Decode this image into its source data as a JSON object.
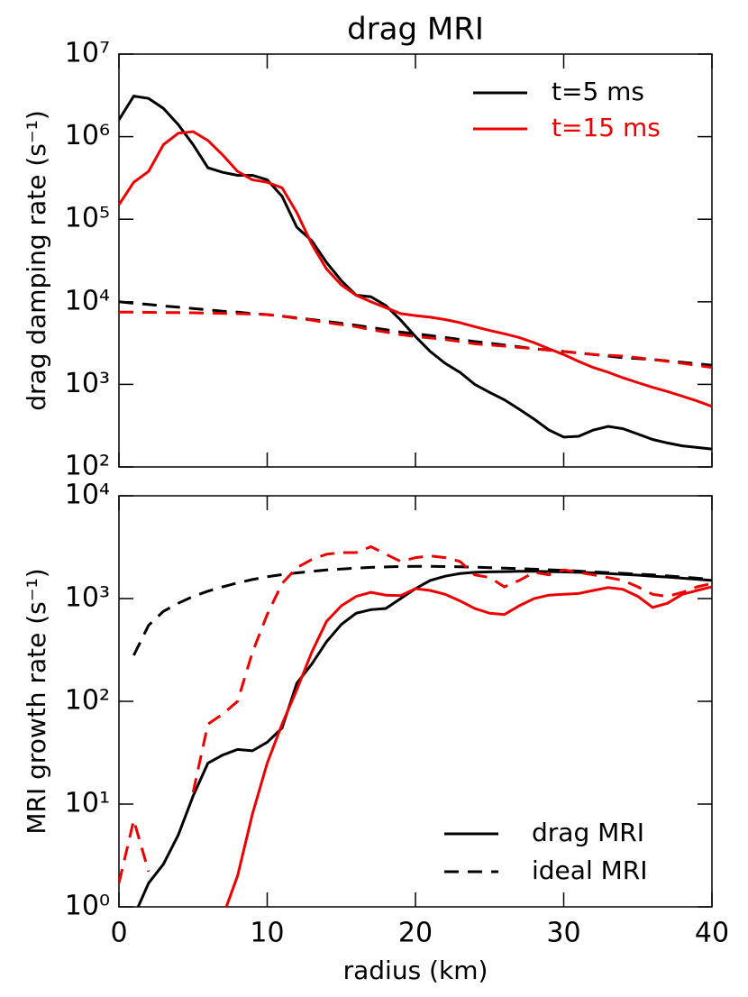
{
  "chart_data": [
    {
      "type": "line",
      "title": "drag MRI",
      "ylabel": "drag damping rate (s⁻¹)",
      "ylog": true,
      "xlim": [
        0,
        40
      ],
      "xticks": [
        0,
        10,
        20,
        30,
        40
      ],
      "ylim": [
        100,
        10000000
      ],
      "yticks": [
        {
          "value": 100,
          "label": "10²"
        },
        {
          "value": 1000,
          "label": "10³"
        },
        {
          "value": 10000,
          "label": "10⁴"
        },
        {
          "value": 100000,
          "label": "10⁵"
        },
        {
          "value": 1000000,
          "label": "10⁶"
        },
        {
          "value": 10000000,
          "label": "10⁷"
        }
      ],
      "legend": {
        "position": "upper right",
        "entries": [
          {
            "name": "t=5 ms",
            "color": "#000000",
            "dash": "solid"
          },
          {
            "name": "t=15 ms",
            "color": "#ee0000",
            "dash": "solid"
          }
        ]
      },
      "x": [
        0,
        1,
        2,
        3,
        4,
        5,
        6,
        7,
        8,
        9,
        10,
        11,
        12,
        13,
        14,
        15,
        16,
        17,
        18,
        19,
        20,
        21,
        22,
        23,
        24,
        25,
        26,
        27,
        28,
        29,
        30,
        31,
        32,
        33,
        34,
        35,
        36,
        37,
        38,
        39,
        40
      ],
      "series": [
        {
          "color": "#000000",
          "dash": "solid",
          "values": [
            1600000,
            3100000,
            2900000,
            2200000,
            1400000,
            800000,
            420000,
            370000,
            340000,
            340000,
            300000,
            190000,
            80000,
            55000,
            30000,
            18000,
            12000,
            11500,
            9000,
            6000,
            3800,
            2500,
            1800,
            1400,
            1000,
            800,
            650,
            500,
            380,
            280,
            230,
            235,
            280,
            310,
            290,
            250,
            215,
            195,
            180,
            172,
            165
          ]
        },
        {
          "color": "#ee0000",
          "dash": "solid",
          "values": [
            150000,
            280000,
            380000,
            800000,
            1100000,
            1150000,
            900000,
            600000,
            380000,
            300000,
            280000,
            240000,
            120000,
            50000,
            25000,
            16000,
            12000,
            10000,
            8500,
            7200,
            6800,
            6500,
            6100,
            5600,
            5000,
            4500,
            4100,
            3700,
            3200,
            2700,
            2300,
            1900,
            1600,
            1400,
            1200,
            1050,
            920,
            820,
            720,
            630,
            540
          ]
        },
        {
          "color": "#000000",
          "dash": "dashed",
          "values": [
            10000,
            9600,
            9300,
            8900,
            8600,
            8300,
            8000,
            7700,
            7500,
            7200,
            7000,
            6700,
            6400,
            6100,
            5800,
            5500,
            5200,
            4900,
            4600,
            4300,
            4100,
            3900,
            3700,
            3500,
            3300,
            3150,
            3000,
            2850,
            2700,
            2600,
            2500,
            2400,
            2300,
            2200,
            2100,
            2050,
            2000,
            1920,
            1850,
            1780,
            1700
          ]
        },
        {
          "color": "#ee0000",
          "dash": "dashed",
          "values": [
            7500,
            7500,
            7450,
            7400,
            7400,
            7350,
            7300,
            7250,
            7200,
            7100,
            7000,
            6700,
            6300,
            6000,
            5600,
            5300,
            5000,
            4600,
            4300,
            4000,
            3800,
            3650,
            3500,
            3300,
            3100,
            3000,
            2900,
            2800,
            2700,
            2600,
            2500,
            2400,
            2300,
            2250,
            2200,
            2100,
            2000,
            1900,
            1800,
            1700,
            1600
          ]
        }
      ]
    },
    {
      "type": "line",
      "ylabel": "MRI growth rate (s⁻¹)",
      "xlabel": "radius (km)",
      "ylog": true,
      "xlim": [
        0,
        40
      ],
      "xticks": [
        0,
        10,
        20,
        30,
        40
      ],
      "ylim": [
        1,
        10000
      ],
      "yticks": [
        {
          "value": 1,
          "label": "10⁰"
        },
        {
          "value": 10,
          "label": "10¹"
        },
        {
          "value": 100,
          "label": "10²"
        },
        {
          "value": 1000,
          "label": "10³"
        },
        {
          "value": 10000,
          "label": "10⁴"
        }
      ],
      "legend": {
        "position": "lower right",
        "entries": [
          {
            "name": "drag MRI",
            "color": "#000000",
            "dash": "solid"
          },
          {
            "name": "ideal MRI",
            "color": "#000000",
            "dash": "dashed"
          }
        ]
      },
      "x": [
        0,
        1,
        2,
        3,
        4,
        5,
        6,
        7,
        8,
        9,
        10,
        11,
        12,
        13,
        14,
        15,
        16,
        17,
        18,
        19,
        20,
        21,
        22,
        23,
        24,
        25,
        26,
        27,
        28,
        29,
        30,
        31,
        32,
        33,
        34,
        35,
        36,
        37,
        38,
        39,
        40
      ],
      "series": [
        {
          "color": "#000000",
          "dash": "solid",
          "values": [
            null,
            0.8,
            1.7,
            2.6,
            5,
            12,
            25,
            30,
            34,
            33,
            40,
            55,
            150,
            230,
            380,
            560,
            720,
            780,
            800,
            1000,
            1250,
            1500,
            1650,
            1750,
            1800,
            1820,
            1830,
            1840,
            1840,
            1830,
            1820,
            1800,
            1780,
            1750,
            1720,
            1690,
            1650,
            1620,
            1580,
            1540,
            1500
          ]
        },
        {
          "color": "#ee0000",
          "dash": "solid",
          "values": [
            null,
            null,
            null,
            null,
            null,
            null,
            null,
            0.8,
            2,
            8,
            25,
            60,
            130,
            300,
            600,
            850,
            1050,
            1150,
            1080,
            1070,
            1250,
            1200,
            1100,
            950,
            800,
            720,
            700,
            850,
            1000,
            1080,
            1100,
            1120,
            1200,
            1280,
            1230,
            1050,
            820,
            900,
            1100,
            1200,
            1300
          ]
        },
        {
          "color": "#000000",
          "dash": "dashed",
          "values": [
            null,
            280,
            550,
            750,
            900,
            1050,
            1180,
            1300,
            1420,
            1530,
            1630,
            1710,
            1780,
            1840,
            1900,
            1940,
            1980,
            2010,
            2030,
            2050,
            2060,
            2055,
            2050,
            2035,
            2020,
            2000,
            1980,
            1955,
            1930,
            1905,
            1880,
            1850,
            1820,
            1790,
            1760,
            1730,
            1700,
            1660,
            1620,
            1580,
            1540
          ]
        },
        {
          "color": "#ee0000",
          "dash": "dashed",
          "values": [
            1.7,
            7,
            2.2,
            null,
            null,
            13,
            60,
            75,
            100,
            300,
            700,
            1400,
            2000,
            2400,
            2700,
            2800,
            2800,
            3200,
            2700,
            2300,
            2500,
            2600,
            2500,
            2300,
            1700,
            1600,
            1300,
            1500,
            1800,
            1700,
            1900,
            1800,
            1700,
            1600,
            1500,
            1300,
            1100,
            1050,
            1150,
            1300,
            1400
          ]
        }
      ]
    }
  ]
}
